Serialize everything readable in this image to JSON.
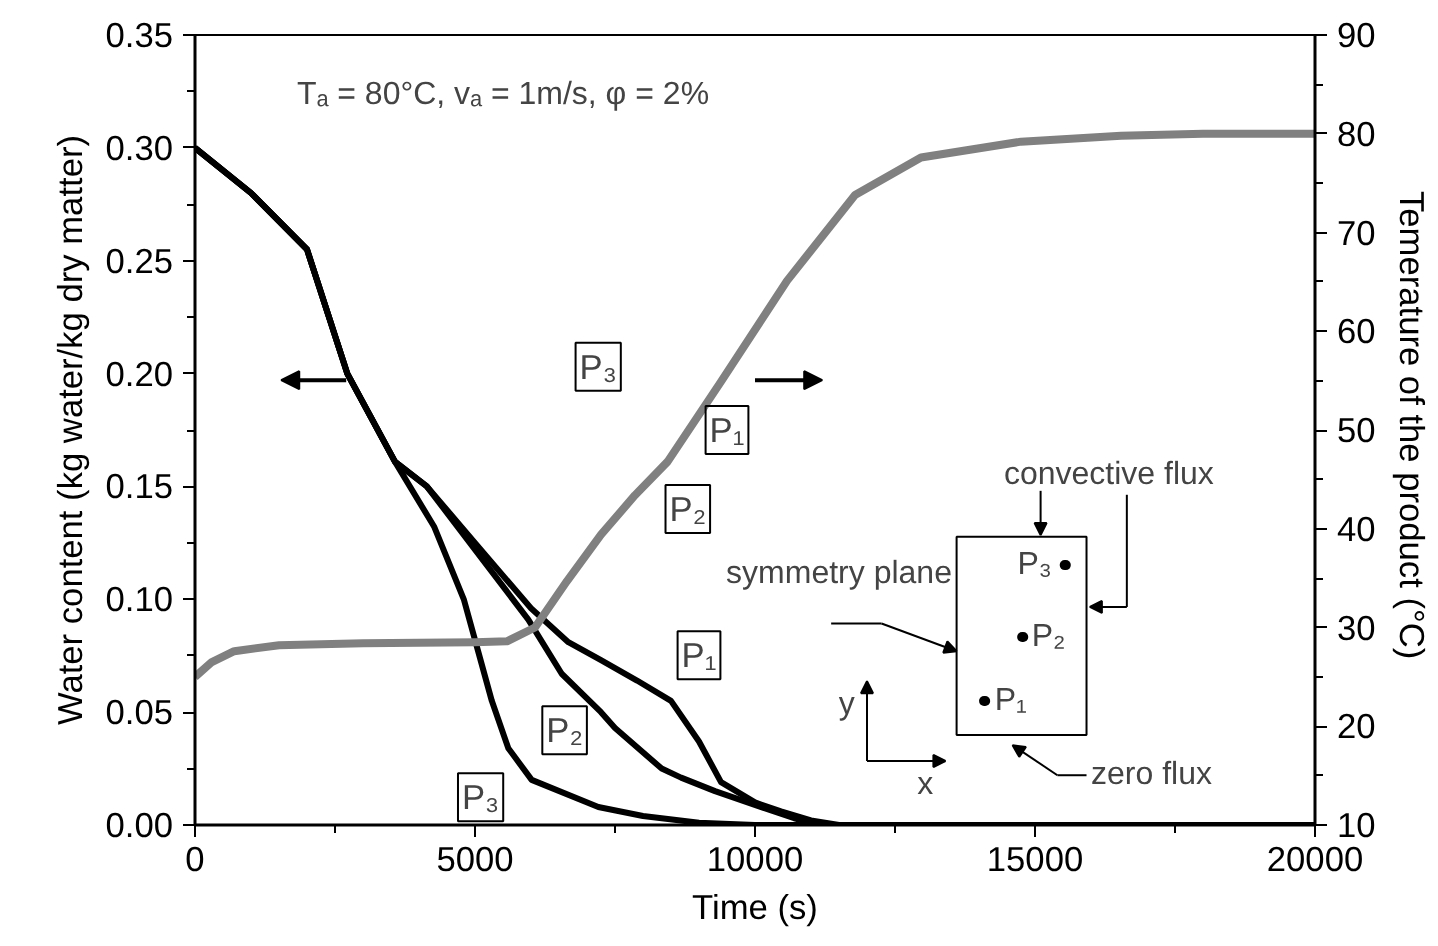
{
  "chart_data": {
    "type": "line",
    "xlabel": "Time (s)",
    "ylabel": "Water content (kg water/kg dry matter)",
    "y2label": "Temerature of the product  (°C)",
    "xlim": [
      0,
      20000
    ],
    "xticks": [
      0,
      {
        "value": 2500,
        "label": null
      },
      5000,
      {
        "value": 7500,
        "label": null
      },
      10000,
      {
        "value": 12500,
        "label": null
      },
      15000,
      {
        "value": 17500,
        "label": null
      },
      20000
    ],
    "ylim": [
      0,
      0.35
    ],
    "yticks": [
      {
        "value": 0,
        "label": "0.00"
      },
      {
        "value": 0.025,
        "label": null
      },
      0.05,
      {
        "value": 0.075,
        "label": null
      },
      {
        "value": 0.1,
        "label": "0.10"
      },
      {
        "value": 0.125,
        "label": null
      },
      0.15,
      {
        "value": 0.175,
        "label": null
      },
      {
        "value": 0.2,
        "label": "0.20"
      },
      {
        "value": 0.225,
        "label": null
      },
      0.25,
      {
        "value": 0.275,
        "label": null
      },
      {
        "value": 0.3,
        "label": "0.30"
      },
      {
        "value": 0.325,
        "label": null
      },
      0.35
    ],
    "y2lim": [
      10,
      90
    ],
    "y2ticks": [
      10,
      {
        "value": 15,
        "label": null
      },
      20,
      {
        "value": 25,
        "label": null
      },
      30,
      {
        "value": 35,
        "label": null
      },
      40,
      {
        "value": 45,
        "label": null
      },
      50,
      {
        "value": 55,
        "label": null
      },
      60,
      {
        "value": 65,
        "label": null
      },
      70,
      {
        "value": 75,
        "label": null
      },
      80,
      {
        "value": 85,
        "label": null
      },
      90
    ],
    "grid": false,
    "legend": false,
    "marker": "none",
    "line_style": "solid",
    "series": [
      {
        "name": "P₁",
        "color": "#000000",
        "x": [
          0,
          1000,
          2000,
          2720,
          3570,
          4140,
          5000,
          6000,
          6667,
          7250,
          7893,
          8500,
          9000,
          9393,
          10000,
          10464,
          11000,
          11500
        ],
        "values": [
          0.3,
          0.28,
          0.255,
          0.2,
          0.161,
          0.15,
          0.125,
          0.096,
          0.081,
          0.073,
          0.064,
          0.055,
          0.037,
          0.019,
          0.01,
          0.006,
          0.002,
          0
        ]
      },
      {
        "name": "P₂",
        "color": "#000000",
        "x": [
          0,
          1000,
          2000,
          2720,
          3570,
          4140,
          5000,
          5952,
          6548,
          7250,
          7500,
          8333,
          8680,
          9286,
          10100,
          10700,
          11180
        ],
        "values": [
          0.3,
          0.28,
          0.255,
          0.2,
          0.161,
          0.15,
          0.122,
          0.091,
          0.067,
          0.05,
          0.043,
          0.025,
          0.021,
          0.015,
          0.008,
          0.003,
          0
        ]
      },
      {
        "name": "P₃",
        "color": "#000000",
        "x": [
          0,
          1000,
          2000,
          2720,
          3570,
          4274,
          4800,
          5000,
          5300,
          5595,
          6012,
          7202,
          8000,
          9000,
          10000,
          15000,
          20000
        ],
        "values": [
          0.3,
          0.28,
          0.255,
          0.2,
          0.161,
          0.132,
          0.1,
          0.082,
          0.055,
          0.034,
          0.02,
          0.008,
          0.004,
          0.001,
          0,
          0,
          0
        ]
      },
      {
        "color": "#808080",
        "axis": "y2",
        "x": [
          0,
          300,
          700,
          1500,
          3000,
          5000,
          5571,
          6071,
          6643,
          7250,
          7857,
          8440,
          9393,
          10571,
          11786,
          12964,
          14750,
          16536,
          18000,
          20000
        ],
        "values": [
          25,
          26.5,
          27.6,
          28.2,
          28.4,
          28.5,
          28.6,
          30,
          34.7,
          39.4,
          43.4,
          46.8,
          54.9,
          65.1,
          73.8,
          77.6,
          79.2,
          79.8,
          80,
          80
        ]
      }
    ],
    "annotations": [
      "Tₐ = 80°C, vₐ = 1m/s, φ = 2%",
      "convective flux",
      "symmetry plane",
      "zero flux",
      "y",
      "x",
      "P₃",
      "P₂",
      "P₁",
      "P₃",
      "P₁",
      "P₂"
    ]
  }
}
